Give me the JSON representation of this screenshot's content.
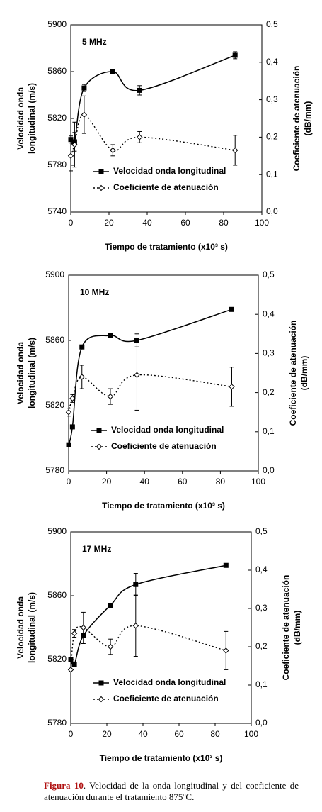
{
  "chart_data": [
    {
      "type": "line",
      "annotation": "5 MHz",
      "xlabel": "Tiempo de tratamiento (x10³  s)",
      "ylabel": [
        "Velocidad onda",
        "longitudinal (m/s)"
      ],
      "y2label": [
        "Coeficiente de atenuación",
        "(dB/mm)"
      ],
      "x": [
        0,
        2,
        7,
        22,
        36,
        86
      ],
      "xlim": [
        0,
        100
      ],
      "xticks": [
        0,
        20,
        40,
        60,
        80,
        100
      ],
      "ylim": [
        5740,
        5900
      ],
      "yticks": [
        5740,
        5780,
        5820,
        5860,
        5900
      ],
      "y2lim": [
        0,
        0.5
      ],
      "y2ticks": [
        {
          "value": 0,
          "label": "0,0"
        },
        {
          "value": 0.1,
          "label": "0,1"
        },
        {
          "value": 0.2,
          "label": "0,2"
        },
        {
          "value": 0.3,
          "label": "0,3"
        },
        {
          "value": 0.4,
          "label": "0,4"
        },
        {
          "value": 0.5,
          "label": "0,5"
        }
      ],
      "series": [
        {
          "name": "Velocidad onda longitudinal",
          "color": "#000000",
          "marker": "square",
          "line_style": "solid",
          "values": [
            5802,
            5800,
            5846,
            5860,
            5844,
            5874
          ],
          "errors": [
            3,
            8,
            3,
            null,
            4,
            3
          ]
        },
        {
          "name": "Coeficiente de atenuación",
          "color": "#000000",
          "marker": "diamond",
          "line_style": "dotted",
          "axis": "y2",
          "values": [
            0.15,
            0.18,
            0.26,
            0.165,
            0.2,
            0.165
          ],
          "errors": [
            0.04,
            0.06,
            0.05,
            0.015,
            0.015,
            0.04
          ]
        }
      ]
    },
    {
      "type": "line",
      "annotation": "10 MHz",
      "xlabel": "Tiempo de tratamiento (x10³ s)",
      "ylabel": [
        "Velocidad onda",
        "longitudinal (m/s)"
      ],
      "y2label": [
        "Coeficiente de atenuación",
        "(dB/mm)"
      ],
      "x": [
        0,
        2,
        7,
        22,
        36,
        86
      ],
      "xlim": [
        0,
        100
      ],
      "xticks": [
        0,
        20,
        40,
        60,
        80,
        100
      ],
      "ylim": [
        5780,
        5900
      ],
      "yticks": [
        5780,
        5820,
        5860,
        5900
      ],
      "y2lim": [
        0,
        0.5
      ],
      "y2ticks": [
        {
          "value": 0,
          "label": "0,0"
        },
        {
          "value": 0.1,
          "label": "0,1"
        },
        {
          "value": 0.2,
          "label": "0,2"
        },
        {
          "value": 0.3,
          "label": "0,3"
        },
        {
          "value": 0.4,
          "label": "0,4"
        },
        {
          "value": 0.5,
          "label": "0,5"
        }
      ],
      "series": [
        {
          "name": "Velocidad onda longitudinal",
          "color": "#000000",
          "marker": "square",
          "line_style": "solid",
          "values": [
            5796,
            5807,
            5856,
            5863,
            5860,
            5879
          ],
          "errors": [
            null,
            null,
            null,
            null,
            4,
            null
          ]
        },
        {
          "name": "Coeficiente de atenuación",
          "color": "#000000",
          "marker": "diamond",
          "line_style": "dotted",
          "axis": "y2",
          "values": [
            0.15,
            0.185,
            0.24,
            0.19,
            0.245,
            0.215
          ],
          "errors": [
            0.01,
            0.01,
            0.03,
            0.02,
            0.09,
            0.05
          ]
        }
      ]
    },
    {
      "type": "line",
      "annotation": "17 MHz",
      "xlabel": "Tiempo de tratamiento (x10³  s)",
      "ylabel": [
        "Velocidad onda",
        "longitudinal (m/s)"
      ],
      "y2label": [
        "Coeficiente de atenuación",
        "(dB/mm)"
      ],
      "x": [
        0,
        2,
        7,
        22,
        36,
        86
      ],
      "xlim": [
        0,
        100
      ],
      "xticks": [
        0,
        20,
        40,
        60,
        80,
        100
      ],
      "ylim": [
        5780,
        5900
      ],
      "yticks": [
        5780,
        5820,
        5860,
        5900
      ],
      "y2lim": [
        0,
        0.5
      ],
      "y2ticks": [
        {
          "value": 0,
          "label": "0,0"
        },
        {
          "value": 0.1,
          "label": "0,1"
        },
        {
          "value": 0.2,
          "label": "0,2"
        },
        {
          "value": 0.3,
          "label": "0,3"
        },
        {
          "value": 0.4,
          "label": "0,4"
        },
        {
          "value": 0.5,
          "label": "0,5"
        }
      ],
      "series": [
        {
          "name": "Velocidad onda longitudinal",
          "color": "#000000",
          "marker": "square",
          "line_style": "solid",
          "values": [
            5820,
            5817,
            5835,
            5854,
            5867,
            5879
          ],
          "errors": [
            null,
            null,
            5,
            null,
            7,
            null
          ]
        },
        {
          "name": "Coeficiente de atenuación",
          "color": "#000000",
          "marker": "diamond",
          "line_style": "dotted",
          "axis": "y2",
          "values": [
            0.14,
            0.235,
            0.25,
            0.2,
            0.255,
            0.19
          ],
          "errors": [
            null,
            0.01,
            0.04,
            0.02,
            0.08,
            0.05
          ]
        }
      ]
    }
  ],
  "caption": {
    "label": "Figura 10",
    "text": ". Velocidad de la onda longitudinal y del coeficiente de atenuación durante el tratamiento 875ºC."
  }
}
